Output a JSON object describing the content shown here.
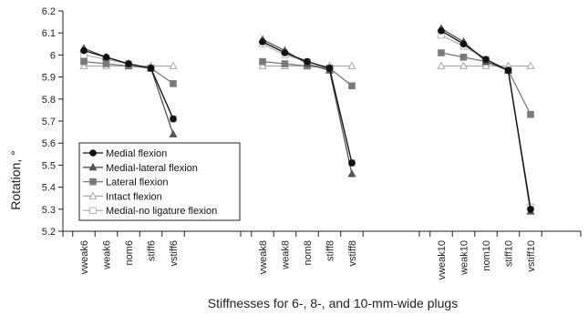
{
  "chart_data": {
    "type": "line",
    "title": "",
    "xlabel": "Stiffnesses for 6-, 8-, and 10-mm-wide plugs",
    "ylabel": "Rotation, °",
    "ylim": [
      5.2,
      6.2
    ],
    "yticks": [
      "5.2",
      "5.3",
      "5.4",
      "5.5",
      "5.6",
      "5.7",
      "5.8",
      "5.9",
      "6",
      "6.1",
      "6.2"
    ],
    "grid": false,
    "legend_position": "bottom-left",
    "groups": [
      {
        "categories": [
          "vweak6",
          "weak6",
          "nom6",
          "stiff6",
          "vstiff6"
        ]
      },
      {
        "categories": [
          "vweak8",
          "weak8",
          "nom8",
          "stiff8",
          "vstiff8"
        ]
      },
      {
        "categories": [
          "vweak10",
          "weak10",
          "nom10",
          "stiff10",
          "vstiff10"
        ]
      }
    ],
    "series": [
      {
        "name": "Medial flexion",
        "marker": "circle-filled",
        "color": "#111111",
        "groups": [
          [
            6.02,
            5.99,
            5.96,
            5.94,
            5.71
          ],
          [
            6.06,
            6.01,
            5.97,
            5.94,
            5.51
          ],
          [
            6.11,
            6.05,
            5.98,
            5.93,
            5.3
          ]
        ]
      },
      {
        "name": "Medial-lateral flexion",
        "marker": "triangle-filled",
        "color": "#555555",
        "groups": [
          [
            6.03,
            5.99,
            5.96,
            5.94,
            5.64
          ],
          [
            6.07,
            6.02,
            5.96,
            5.93,
            5.46
          ],
          [
            6.12,
            6.06,
            5.97,
            5.93,
            5.29
          ]
        ]
      },
      {
        "name": "Lateral flexion",
        "marker": "square-filled",
        "color": "#7a7a7a",
        "groups": [
          [
            5.97,
            5.96,
            5.95,
            5.94,
            5.87
          ],
          [
            5.97,
            5.96,
            5.95,
            5.94,
            5.86
          ],
          [
            6.01,
            5.99,
            5.97,
            5.93,
            5.73
          ]
        ]
      },
      {
        "name": "Intact flexion",
        "marker": "triangle-open",
        "color": "#aaaaaa",
        "groups": [
          [
            5.95,
            5.95,
            5.95,
            5.95,
            5.95
          ],
          [
            5.95,
            5.95,
            5.95,
            5.95,
            5.95
          ],
          [
            5.95,
            5.95,
            5.95,
            5.95,
            5.95
          ]
        ]
      },
      {
        "name": "Medial-no ligature flexion",
        "marker": "square-open",
        "color": "#b5b5b5",
        "groups": [
          [
            6.0,
            5.98,
            5.96,
            5.94,
            5.71
          ],
          [
            6.05,
            6.0,
            5.97,
            5.94,
            5.51
          ],
          [
            6.09,
            6.04,
            5.98,
            5.93,
            5.31
          ]
        ]
      }
    ]
  }
}
